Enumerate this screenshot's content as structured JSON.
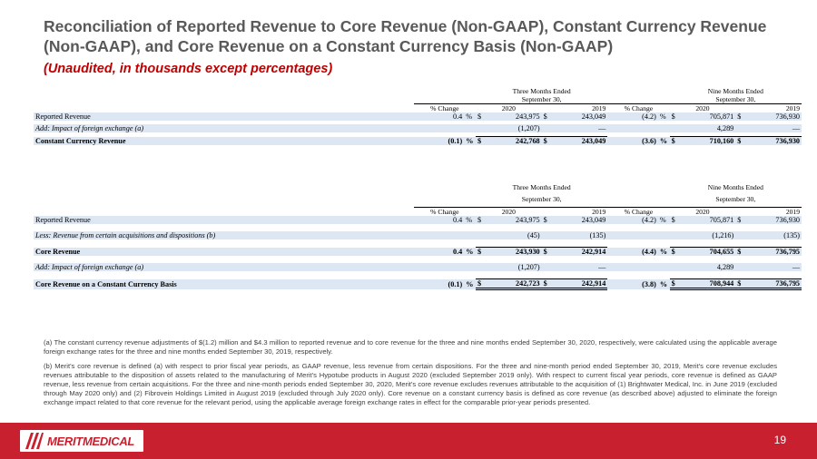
{
  "title": "Reconciliation of Reported Revenue to Core Revenue (Non-GAAP), Constant Currency Revenue (Non-GAAP), and Core Revenue on a Constant Currency Basis (Non-GAAP)",
  "subtitle": "(Unaudited, in thousands except percentages)",
  "table1": {
    "three_months": "Three Months Ended",
    "nine_months": "Nine Months Ended",
    "period": "September 30,",
    "pct_change": "% Change",
    "y2020": "2020",
    "y2019": "2019",
    "rows": [
      {
        "label": "Reported Revenue",
        "tm_pct": "0.4",
        "tm_pct_sym": "%",
        "tm_d1": "$",
        "tm_2020": "243,975",
        "tm_d2": "$",
        "tm_2019": "243,049",
        "nm_pct": "(4.2)",
        "nm_pct_sym": "%",
        "nm_d1": "$",
        "nm_2020": "705,871",
        "nm_d2": "$",
        "nm_2019": "736,930"
      },
      {
        "label": "Add: Impact of foreign exchange (a)",
        "tm_pct": "",
        "tm_pct_sym": "",
        "tm_d1": "",
        "tm_2020": "(1,207)",
        "tm_d2": "",
        "tm_2019": "—",
        "nm_pct": "",
        "nm_pct_sym": "",
        "nm_d1": "",
        "nm_2020": "4,289",
        "nm_d2": "",
        "nm_2019": "—"
      },
      {
        "label": "Constant Currency Revenue",
        "tm_pct": "(0.1)",
        "tm_pct_sym": "%",
        "tm_d1": "$",
        "tm_2020": "242,768",
        "tm_d2": "$",
        "tm_2019": "243,049",
        "nm_pct": "(3.6)",
        "nm_pct_sym": "%",
        "nm_d1": "$",
        "nm_2020": "710,160",
        "nm_d2": "$",
        "nm_2019": "736,930"
      }
    ]
  },
  "table2": {
    "three_months": "Three Months Ended",
    "nine_months": "Nine Months Ended",
    "period": "September 30,",
    "pct_change": "% Change",
    "y2020": "2020",
    "y2019": "2019",
    "rows": [
      {
        "label": "Reported Revenue",
        "tm_pct": "0.4",
        "tm_pct_sym": "%",
        "tm_d1": "$",
        "tm_2020": "243,975",
        "tm_d2": "$",
        "tm_2019": "243,049",
        "nm_pct": "(4.2)",
        "nm_pct_sym": "%",
        "nm_d1": "$",
        "nm_2020": "705,871",
        "nm_d2": "$",
        "nm_2019": "736,930"
      },
      {
        "label": "Less: Revenue from certain acquisitions and dispositions (b)",
        "tm_pct": "",
        "tm_pct_sym": "",
        "tm_d1": "",
        "tm_2020": "(45)",
        "tm_d2": "",
        "tm_2019": "(135)",
        "nm_pct": "",
        "nm_pct_sym": "",
        "nm_d1": "",
        "nm_2020": "(1,216)",
        "nm_d2": "",
        "nm_2019": "(135)"
      },
      {
        "label": "Core Revenue",
        "tm_pct": "0.4",
        "tm_pct_sym": "%",
        "tm_d1": "$",
        "tm_2020": "243,930",
        "tm_d2": "$",
        "tm_2019": "242,914",
        "nm_pct": "(4.4)",
        "nm_pct_sym": "%",
        "nm_d1": "$",
        "nm_2020": "704,655",
        "nm_d2": "$",
        "nm_2019": "736,795"
      },
      {
        "label": "Add: Impact of foreign exchange (a)",
        "tm_pct": "",
        "tm_pct_sym": "",
        "tm_d1": "",
        "tm_2020": "(1,207)",
        "tm_d2": "",
        "tm_2019": "—",
        "nm_pct": "",
        "nm_pct_sym": "",
        "nm_d1": "",
        "nm_2020": "4,289",
        "nm_d2": "",
        "nm_2019": "—"
      },
      {
        "label": "Core Revenue on a Constant Currency Basis",
        "tm_pct": "(0.1)",
        "tm_pct_sym": "%",
        "tm_d1": "$",
        "tm_2020": "242,723",
        "tm_d2": "$",
        "tm_2019": "242,914",
        "nm_pct": "(3.8)",
        "nm_pct_sym": "%",
        "nm_d1": "$",
        "nm_2020": "708,944",
        "nm_d2": "$",
        "nm_2019": "736,795"
      }
    ]
  },
  "notes": {
    "a": "(a) The constant currency revenue adjustments of $(1.2) million and $4.3 million to reported revenue and to core revenue for the three and nine months ended September 30, 2020, respectively, were calculated using the applicable average foreign exchange rates for the three and nine months ended September 30, 2019, respectively.",
    "b": "(b) Merit's core revenue is defined (a) with respect to prior fiscal year periods, as GAAP revenue, less revenue from certain dispositions. For the three and nine-month period ended September 30, 2019, Merit's core revenue excludes revenues attributable to the disposition of assets related to the manufacturing of Merit's Hypotube products in August 2020 (excluded September 2019 only). With respect to current fiscal year periods, core revenue is defined as GAAP revenue, less revenue from certain acquisitions. For the three and nine-month periods ended September 30, 2020, Merit's core revenue excludes revenues attributable to the acquisition of (1) Brightwater Medical, Inc. in June 2019 (excluded through May 2020 only) and (2) Fibrovein Holdings Limited in August 2019 (excluded through July 2020 only). Core revenue on a constant currency basis is defined as core revenue (as described above) adjusted to eliminate the foreign exchange impact related to that core revenue for the relevant period, using the applicable average foreign exchange rates in effect for the comparable prior-year periods presented."
  },
  "footer": {
    "logo_text": "MERITMEDICAL",
    "page_number": "19"
  },
  "colors": {
    "accent": "#c8202f",
    "title": "#595959",
    "subtitle": "#c00000",
    "band": "#dde7f3"
  }
}
